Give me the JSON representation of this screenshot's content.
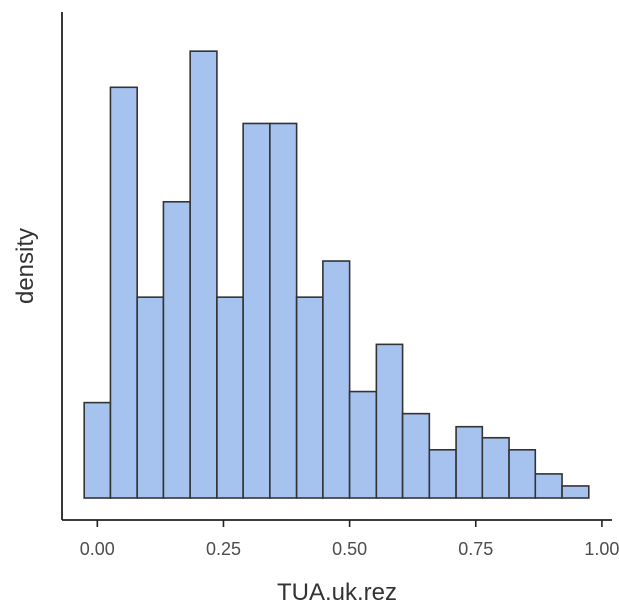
{
  "chart_data": {
    "type": "bar",
    "subtype": "histogram",
    "xlabel": "TUA.uk.rez",
    "ylabel": "density",
    "xlim": [
      -0.07,
      1.02
    ],
    "ylim": [
      0,
      2.42
    ],
    "x_ticks": [
      {
        "value": 0.0,
        "label": "0.00"
      },
      {
        "value": 0.25,
        "label": "0.25"
      },
      {
        "value": 0.5,
        "label": "0.50"
      },
      {
        "value": 0.75,
        "label": "0.75"
      },
      {
        "value": 1.0,
        "label": "1.00"
      }
    ],
    "y_tick_labels_shown": false,
    "grid": false,
    "colors": {
      "fill": "#a6c3f0",
      "edge": "#333333",
      "axis": "#222222"
    },
    "bins": [
      {
        "x0": -0.026,
        "x1": 0.026,
        "density": 0.475
      },
      {
        "x0": 0.026,
        "x1": 0.079,
        "density": 2.045
      },
      {
        "x0": 0.079,
        "x1": 0.131,
        "density": 1.0
      },
      {
        "x0": 0.131,
        "x1": 0.184,
        "density": 1.475
      },
      {
        "x0": 0.184,
        "x1": 0.237,
        "density": 2.225
      },
      {
        "x0": 0.237,
        "x1": 0.289,
        "density": 1.0
      },
      {
        "x0": 0.289,
        "x1": 0.342,
        "density": 1.865
      },
      {
        "x0": 0.342,
        "x1": 0.395,
        "density": 1.865
      },
      {
        "x0": 0.395,
        "x1": 0.447,
        "density": 1.0
      },
      {
        "x0": 0.447,
        "x1": 0.5,
        "density": 1.18
      },
      {
        "x0": 0.5,
        "x1": 0.553,
        "density": 0.53
      },
      {
        "x0": 0.553,
        "x1": 0.605,
        "density": 0.765
      },
      {
        "x0": 0.605,
        "x1": 0.658,
        "density": 0.42
      },
      {
        "x0": 0.658,
        "x1": 0.711,
        "density": 0.24
      },
      {
        "x0": 0.711,
        "x1": 0.763,
        "density": 0.355
      },
      {
        "x0": 0.763,
        "x1": 0.816,
        "density": 0.3
      },
      {
        "x0": 0.816,
        "x1": 0.868,
        "density": 0.24
      },
      {
        "x0": 0.868,
        "x1": 0.921,
        "density": 0.12
      },
      {
        "x0": 0.921,
        "x1": 0.974,
        "density": 0.06
      }
    ]
  }
}
